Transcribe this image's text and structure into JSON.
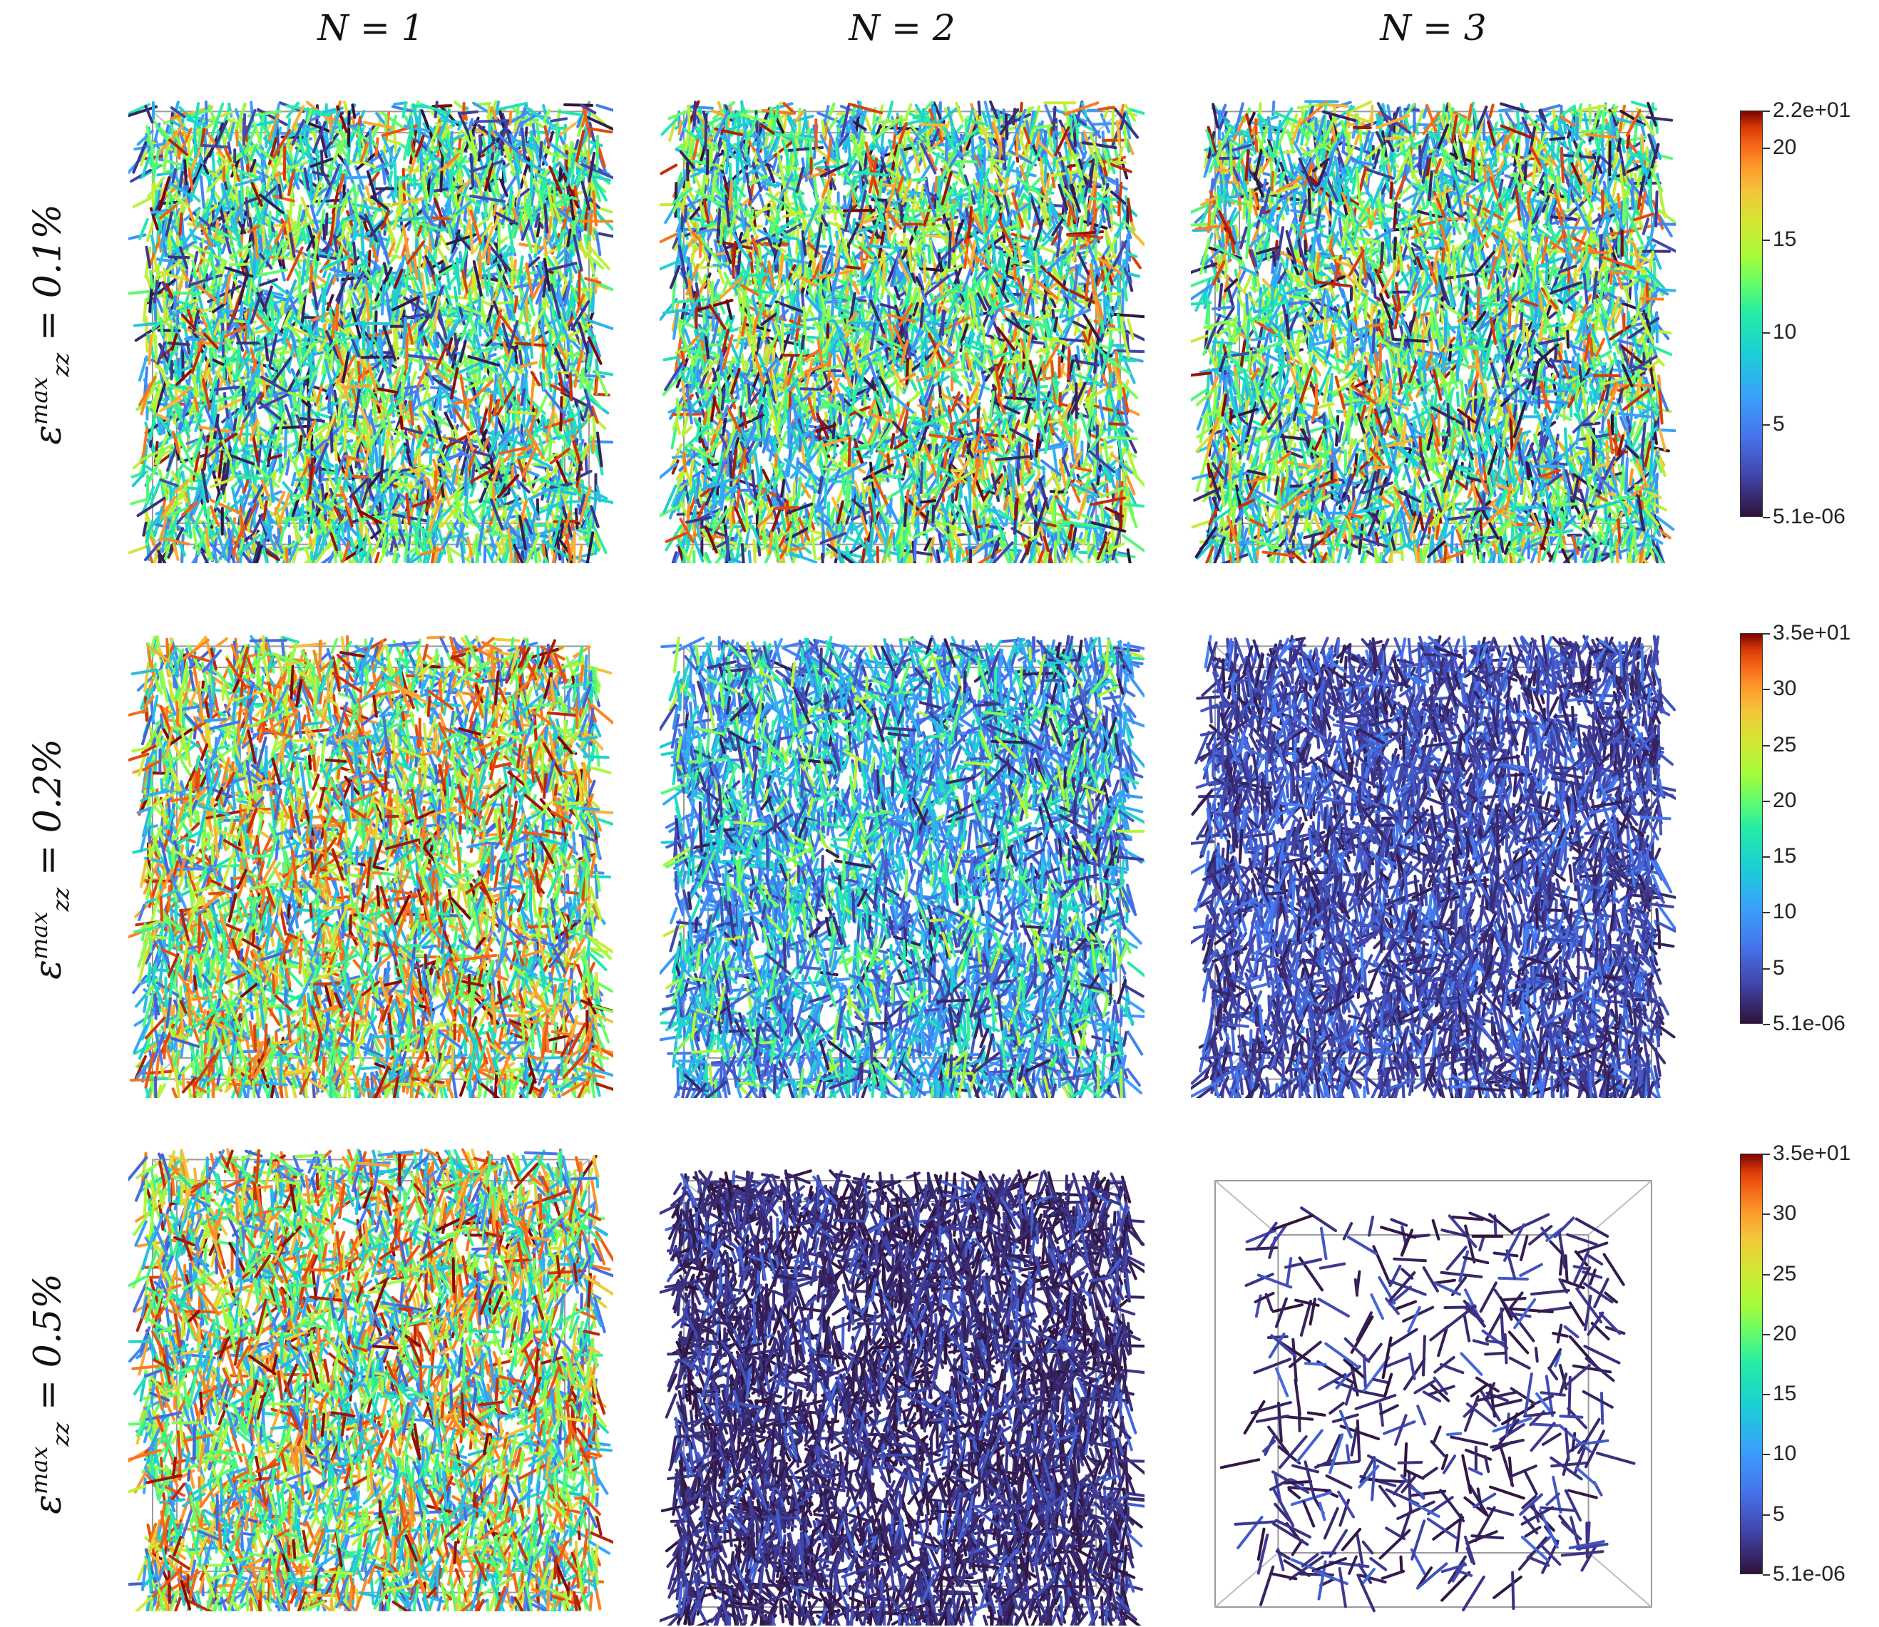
{
  "columns": [
    {
      "label": "N = 1"
    },
    {
      "label": "N = 2"
    },
    {
      "label": "N = 3"
    }
  ],
  "rows": [
    {
      "symbol": "ε",
      "sup": "max",
      "sub": "zz",
      "value": "= 0.1%"
    },
    {
      "symbol": "ε",
      "sup": "max",
      "sub": "zz",
      "value": "= 0.2%"
    },
    {
      "symbol": "ε",
      "sup": "max",
      "sub": "zz",
      "value": "= 0.5%"
    }
  ],
  "colorbars": [
    {
      "max_label": "2.2e+01",
      "min_label": "5.1e-06",
      "vmax": 22,
      "ticks": [
        "20",
        "15",
        "10",
        "5"
      ],
      "tick_values": [
        20,
        15,
        10,
        5
      ]
    },
    {
      "max_label": "3.5e+01",
      "min_label": "5.1e-06",
      "vmax": 35,
      "ticks": [
        "30",
        "25",
        "20",
        "15",
        "10",
        "5"
      ],
      "tick_values": [
        30,
        25,
        20,
        15,
        10,
        5
      ]
    },
    {
      "max_label": "3.5e+01",
      "min_label": "5.1e-06",
      "vmax": 35,
      "ticks": [
        "30",
        "25",
        "20",
        "15",
        "10",
        "5"
      ],
      "tick_values": [
        30,
        25,
        20,
        15,
        10,
        5
      ]
    }
  ],
  "panels": [
    {
      "row": 0,
      "col": 0,
      "mode": "full",
      "intensity": "mixed-high"
    },
    {
      "row": 0,
      "col": 1,
      "mode": "full",
      "intensity": "mixed-high"
    },
    {
      "row": 0,
      "col": 2,
      "mode": "full",
      "intensity": "mixed-high"
    },
    {
      "row": 1,
      "col": 0,
      "mode": "full",
      "intensity": "very-high"
    },
    {
      "row": 1,
      "col": 1,
      "mode": "full",
      "intensity": "medium"
    },
    {
      "row": 1,
      "col": 2,
      "mode": "full",
      "intensity": "low"
    },
    {
      "row": 2,
      "col": 0,
      "mode": "full",
      "intensity": "very-high"
    },
    {
      "row": 2,
      "col": 1,
      "mode": "full",
      "intensity": "very-low"
    },
    {
      "row": 2,
      "col": 2,
      "mode": "sparse",
      "intensity": "very-low"
    }
  ]
}
